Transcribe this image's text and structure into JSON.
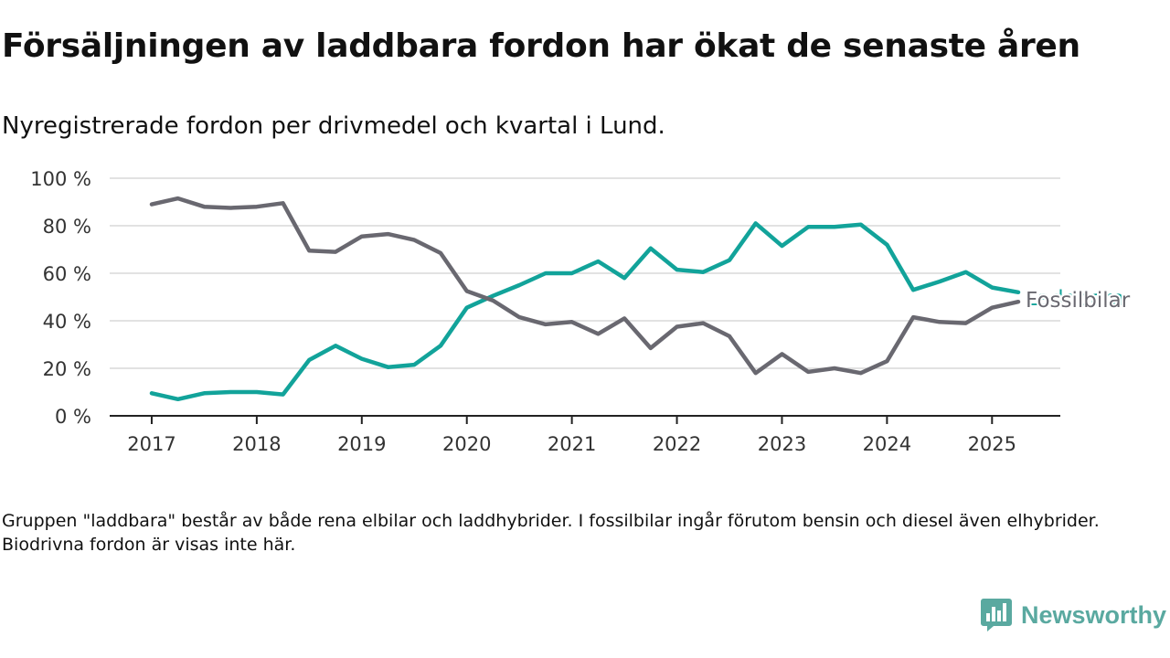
{
  "header": {
    "title": "Försäljningen av laddbara fordon har ökat de senaste åren",
    "subtitle": "Nyregistrerade fordon per drivmedel och kvartal i Lund."
  },
  "note": "Gruppen \"laddbara\" består av både rena elbilar och laddhybrider. I fossilbilar ingår förutom bensin och diesel även elhybrider. Biodrivna fordon är visas inte här.",
  "brand": {
    "name": "Newsworthy",
    "color": "#5aa9a0",
    "icon": "newsworthy-chart-bubble-icon"
  },
  "chart_data": {
    "type": "line",
    "title": "Försäljningen av laddbara fordon har ökat de senaste åren",
    "subtitle": "Nyregistrerade fordon per drivmedel och kvartal i Lund.",
    "xlabel": "",
    "ylabel": "",
    "ylim": [
      0,
      100
    ],
    "yticks": [
      0,
      20,
      40,
      60,
      80,
      100
    ],
    "ytick_labels": [
      "0 %",
      "20 %",
      "40 %",
      "60 %",
      "80 %",
      "100 %"
    ],
    "xlim": [
      2016.6,
      2025.65
    ],
    "xticks": [
      2017,
      2018,
      2019,
      2020,
      2021,
      2022,
      2023,
      2024,
      2025
    ],
    "xtick_labels": [
      "2017",
      "2018",
      "2019",
      "2020",
      "2021",
      "2022",
      "2023",
      "2024",
      "2025"
    ],
    "x": [
      2017.0,
      2017.25,
      2017.5,
      2017.75,
      2018.0,
      2018.25,
      2018.5,
      2018.75,
      2019.0,
      2019.25,
      2019.5,
      2019.75,
      2020.0,
      2020.25,
      2020.5,
      2020.75,
      2021.0,
      2021.25,
      2021.5,
      2021.75,
      2022.0,
      2022.25,
      2022.5,
      2022.75,
      2023.0,
      2023.25,
      2023.5,
      2023.75,
      2024.0,
      2024.25,
      2024.5,
      2024.75,
      2025.0,
      2025.25
    ],
    "grid": true,
    "legend": "direct labels at line ends",
    "series": [
      {
        "name": "Laddbara",
        "color": "#12a39a",
        "values": [
          9.5,
          7,
          9.5,
          10,
          10,
          9,
          23.5,
          29.5,
          24,
          20.5,
          21.5,
          29.5,
          45.5,
          50.5,
          55,
          60,
          60,
          65,
          58,
          70.5,
          61.5,
          60.5,
          65.5,
          81,
          71.5,
          79.5,
          79.5,
          80.5,
          72,
          53,
          56.5,
          60.5,
          54,
          52
        ]
      },
      {
        "name": "Fossilbilar",
        "color": "#696870",
        "values": [
          89,
          91.5,
          88,
          87.5,
          88,
          89.5,
          69.5,
          69,
          75.5,
          76.5,
          74,
          68.5,
          52.5,
          48.5,
          41.5,
          38.5,
          39.5,
          34.5,
          41,
          28.5,
          37.5,
          39,
          33.5,
          18,
          26,
          18.5,
          20,
          18,
          23,
          41.5,
          39.5,
          39,
          45.5,
          48
        ]
      }
    ]
  }
}
